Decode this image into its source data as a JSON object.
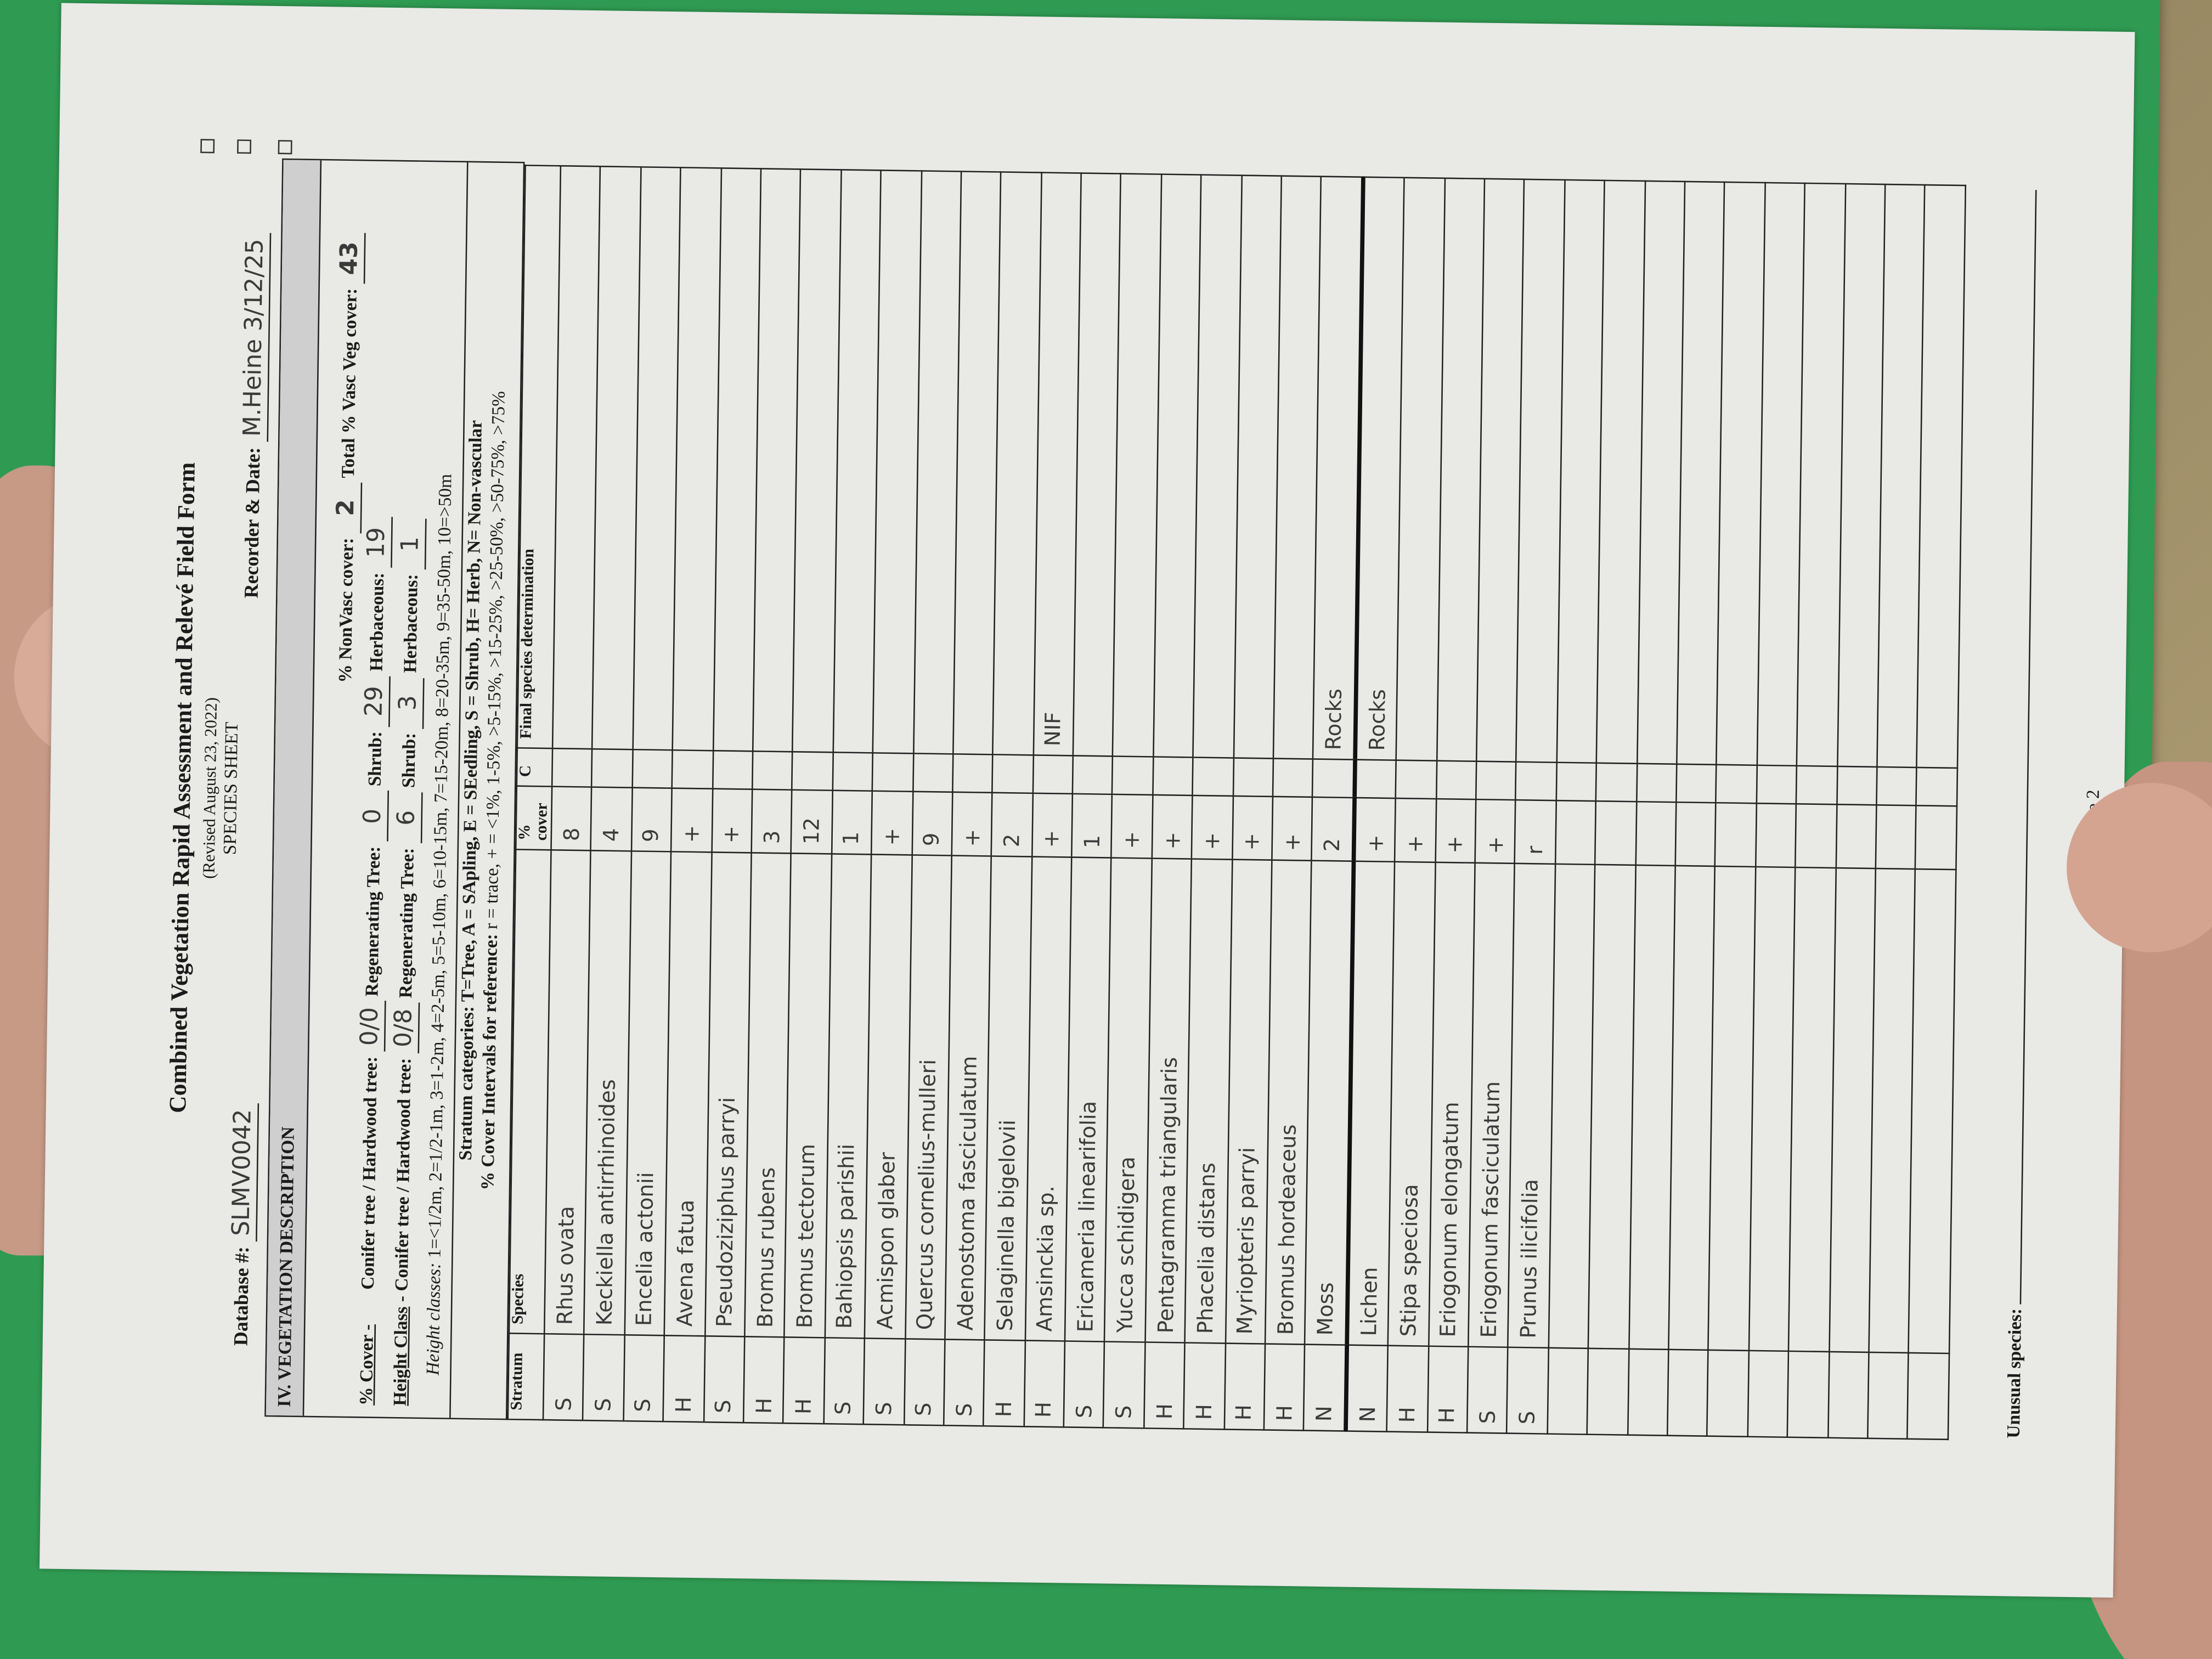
{
  "form": {
    "title": "Combined Vegetation Rapid Assessment and Relevé Field Form",
    "revised": "(Revised August 23, 2022)",
    "subtitle": "SPECIES SHEET",
    "database_label": "Database #:",
    "database_value": "SLMV0042",
    "recorder_label": "Recorder & Date:",
    "recorder_value": "M.Heine 3/12/25",
    "page": "Page 2"
  },
  "section": {
    "heading": "IV. VEGETATION DESCRIPTION",
    "cover_label": "% Cover -",
    "cover_conifer_label": "Conifer tree / Hardwood tree:",
    "cover_conifer_value": "0/0",
    "cover_regen_label": "Regenerating Tree:",
    "cover_regen_value": "0",
    "cover_shrub_label": "Shrub:",
    "cover_shrub_value": "29",
    "cover_herb_label": "Herbaceous:",
    "cover_herb_value": "19",
    "nonvasc_label": "% NonVasc cover:",
    "nonvasc_value": "2",
    "total_vasc_label": "Total % Vasc Veg cover:",
    "total_vasc_value": "43",
    "height_label": "Height Class",
    "height_conifer_label": "- Conifer tree / Hardwood tree:",
    "height_conifer_value": "0/8",
    "height_regen_label": "Regenerating Tree:",
    "height_regen_value": "6",
    "height_shrub_label": "Shrub:",
    "height_shrub_value": "3",
    "height_herb_label": "Herbaceous:",
    "height_herb_value": "1",
    "height_classes_label": "Height classes:",
    "height_classes": "1=<1/2m, 2=1/2-1m, 3=1-2m, 4=2-5m, 5=5-10m, 6=10-15m, 7=15-20m, 8=20-35m, 9=35-50m, 10=>50m",
    "stratum_categories": "Stratum categories: T=Tree, A = SApling, E = SEedling, S = Shrub, H= Herb, N= Non-vascular",
    "cover_intervals_label": "% Cover Intervals for reference:",
    "cover_intervals": "r = trace, + = <1%, 1-5%, >5-15%, >15-25%, >25-50%, >50-75%, >75%"
  },
  "table": {
    "headers": {
      "stratum": "Stratum",
      "species": "Species",
      "cover": "% cover",
      "c": "C",
      "final": "Final species determination"
    },
    "rows": [
      {
        "stratum": "S",
        "species": "Rhus ovata",
        "cover": "8",
        "final": ""
      },
      {
        "stratum": "S",
        "species": "Keckiella antirrhinoides",
        "cover": "4",
        "final": ""
      },
      {
        "stratum": "S",
        "species": "Encelia actonii",
        "cover": "9",
        "final": ""
      },
      {
        "stratum": "H",
        "species": "Avena fatua",
        "cover": "+",
        "final": ""
      },
      {
        "stratum": "S",
        "species": "Pseudoziziphus parryi",
        "cover": "+",
        "final": ""
      },
      {
        "stratum": "H",
        "species": "Bromus rubens",
        "cover": "3",
        "final": ""
      },
      {
        "stratum": "H",
        "species": "Bromus tectorum",
        "cover": "12",
        "final": ""
      },
      {
        "stratum": "S",
        "species": "Bahiopsis parishii",
        "cover": "1",
        "final": ""
      },
      {
        "stratum": "S",
        "species": "Acmispon glaber",
        "cover": "+",
        "final": ""
      },
      {
        "stratum": "S",
        "species": "Quercus cornelius-mulleri",
        "cover": "9",
        "final": ""
      },
      {
        "stratum": "S",
        "species": "Adenostoma fasciculatum",
        "cover": "+",
        "final": ""
      },
      {
        "stratum": "H",
        "species": "Selaginella bigelovii",
        "cover": "2",
        "final": ""
      },
      {
        "stratum": "H",
        "species": "Amsinckia sp.",
        "cover": "+",
        "final": "NIF"
      },
      {
        "stratum": "S",
        "species": "Ericameria linearifolia",
        "cover": "1",
        "final": ""
      },
      {
        "stratum": "S",
        "species": "Yucca schidigera",
        "cover": "+",
        "final": ""
      },
      {
        "stratum": "H",
        "species": "Pentagramma triangularis",
        "cover": "+",
        "final": ""
      },
      {
        "stratum": "H",
        "species": "Phacelia distans",
        "cover": "+",
        "final": ""
      },
      {
        "stratum": "H",
        "species": "Myriopteris parryi",
        "cover": "+",
        "final": ""
      },
      {
        "stratum": "H",
        "species": "Bromus hordeaceus",
        "cover": "+",
        "final": ""
      },
      {
        "stratum": "N",
        "species": "Moss",
        "cover": "2",
        "final": "Rocks"
      },
      {
        "stratum": "N",
        "species": "Lichen",
        "cover": "+",
        "final": "Rocks"
      },
      {
        "stratum": "H",
        "species": "Stipa speciosa",
        "cover": "+",
        "final": ""
      },
      {
        "stratum": "H",
        "species": "Eriogonum elongatum",
        "cover": "+",
        "final": ""
      },
      {
        "stratum": "S",
        "species": "Eriogonum fasciculatum",
        "cover": "+",
        "final": ""
      },
      {
        "stratum": "S",
        "species": "Prunus ilicifolia",
        "cover": "r",
        "final": ""
      }
    ]
  },
  "unusual_label": "Unusual species:",
  "colors": {
    "folder": "#2f9b52",
    "paper": "#e9e9e6",
    "ink": "#3a3a3a"
  }
}
